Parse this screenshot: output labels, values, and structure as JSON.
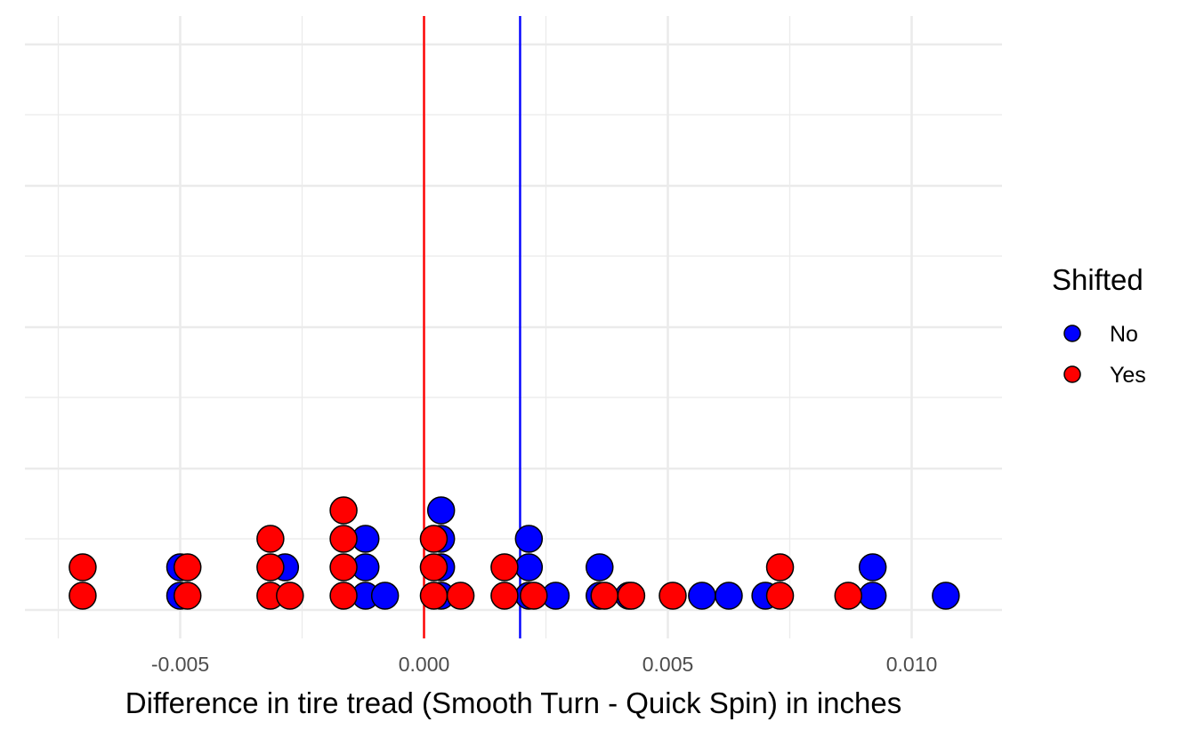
{
  "chart_data": {
    "type": "scatter",
    "subtype": "dotplot",
    "title": "",
    "xlabel": "Difference in tire tread (Smooth Turn - Quick Spin) in inches",
    "ylabel": "",
    "xlim": [
      -0.0078,
      0.0122
    ],
    "x_ticks": [
      -0.005,
      0.0,
      0.005,
      0.01
    ],
    "x_tick_labels": [
      "-0.005",
      "0.000",
      "0.005",
      "0.010"
    ],
    "y_tick_labels_shown": false,
    "grid": true,
    "legend": {
      "title": "Shifted",
      "position": "right",
      "entries": [
        {
          "label": "No",
          "color": "#0000ff"
        },
        {
          "label": "Yes",
          "color": "#ff0000"
        }
      ]
    },
    "reference_lines": [
      {
        "series": "Yes",
        "x": 0.0,
        "color": "#ff0000"
      },
      {
        "series": "No",
        "x": 0.00197,
        "color": "#0000ff"
      }
    ],
    "series": [
      {
        "name": "No",
        "color": "#0000ff",
        "points": [
          {
            "x": -0.005,
            "stack": 1
          },
          {
            "x": -0.005,
            "stack": 2
          },
          {
            "x": -0.00285,
            "stack": 2
          },
          {
            "x": -0.0012,
            "stack": 1
          },
          {
            "x": -0.0012,
            "stack": 2
          },
          {
            "x": -0.0012,
            "stack": 3
          },
          {
            "x": -0.0008,
            "stack": 1
          },
          {
            "x": 0.00035,
            "stack": 1
          },
          {
            "x": 0.00035,
            "stack": 2
          },
          {
            "x": 0.00035,
            "stack": 3
          },
          {
            "x": 0.00035,
            "stack": 4
          },
          {
            "x": 0.00215,
            "stack": 1
          },
          {
            "x": 0.00215,
            "stack": 2
          },
          {
            "x": 0.00215,
            "stack": 3
          },
          {
            "x": 0.0027,
            "stack": 1
          },
          {
            "x": 0.0036,
            "stack": 1
          },
          {
            "x": 0.0036,
            "stack": 2
          },
          {
            "x": 0.0042,
            "stack": 1
          },
          {
            "x": 0.0057,
            "stack": 1
          },
          {
            "x": 0.00625,
            "stack": 1
          },
          {
            "x": 0.007,
            "stack": 1
          },
          {
            "x": 0.0092,
            "stack": 1
          },
          {
            "x": 0.0092,
            "stack": 2
          },
          {
            "x": 0.0107,
            "stack": 1
          }
        ]
      },
      {
        "name": "Yes",
        "color": "#ff0000",
        "points": [
          {
            "x": -0.007,
            "stack": 1
          },
          {
            "x": -0.007,
            "stack": 2
          },
          {
            "x": -0.00485,
            "stack": 1
          },
          {
            "x": -0.00485,
            "stack": 2
          },
          {
            "x": -0.00315,
            "stack": 1
          },
          {
            "x": -0.00315,
            "stack": 2
          },
          {
            "x": -0.00315,
            "stack": 3
          },
          {
            "x": -0.00275,
            "stack": 1
          },
          {
            "x": -0.00165,
            "stack": 1
          },
          {
            "x": -0.00165,
            "stack": 2
          },
          {
            "x": -0.00165,
            "stack": 3
          },
          {
            "x": -0.00165,
            "stack": 4
          },
          {
            "x": 0.0002,
            "stack": 1
          },
          {
            "x": 0.0002,
            "stack": 2
          },
          {
            "x": 0.0002,
            "stack": 3
          },
          {
            "x": 0.00075,
            "stack": 1
          },
          {
            "x": 0.00165,
            "stack": 1
          },
          {
            "x": 0.00165,
            "stack": 2
          },
          {
            "x": 0.00225,
            "stack": 1
          },
          {
            "x": 0.0037,
            "stack": 1
          },
          {
            "x": 0.00425,
            "stack": 1
          },
          {
            "x": 0.0051,
            "stack": 1
          },
          {
            "x": 0.0073,
            "stack": 1
          },
          {
            "x": 0.0073,
            "stack": 2
          },
          {
            "x": 0.0087,
            "stack": 1
          }
        ]
      }
    ]
  }
}
